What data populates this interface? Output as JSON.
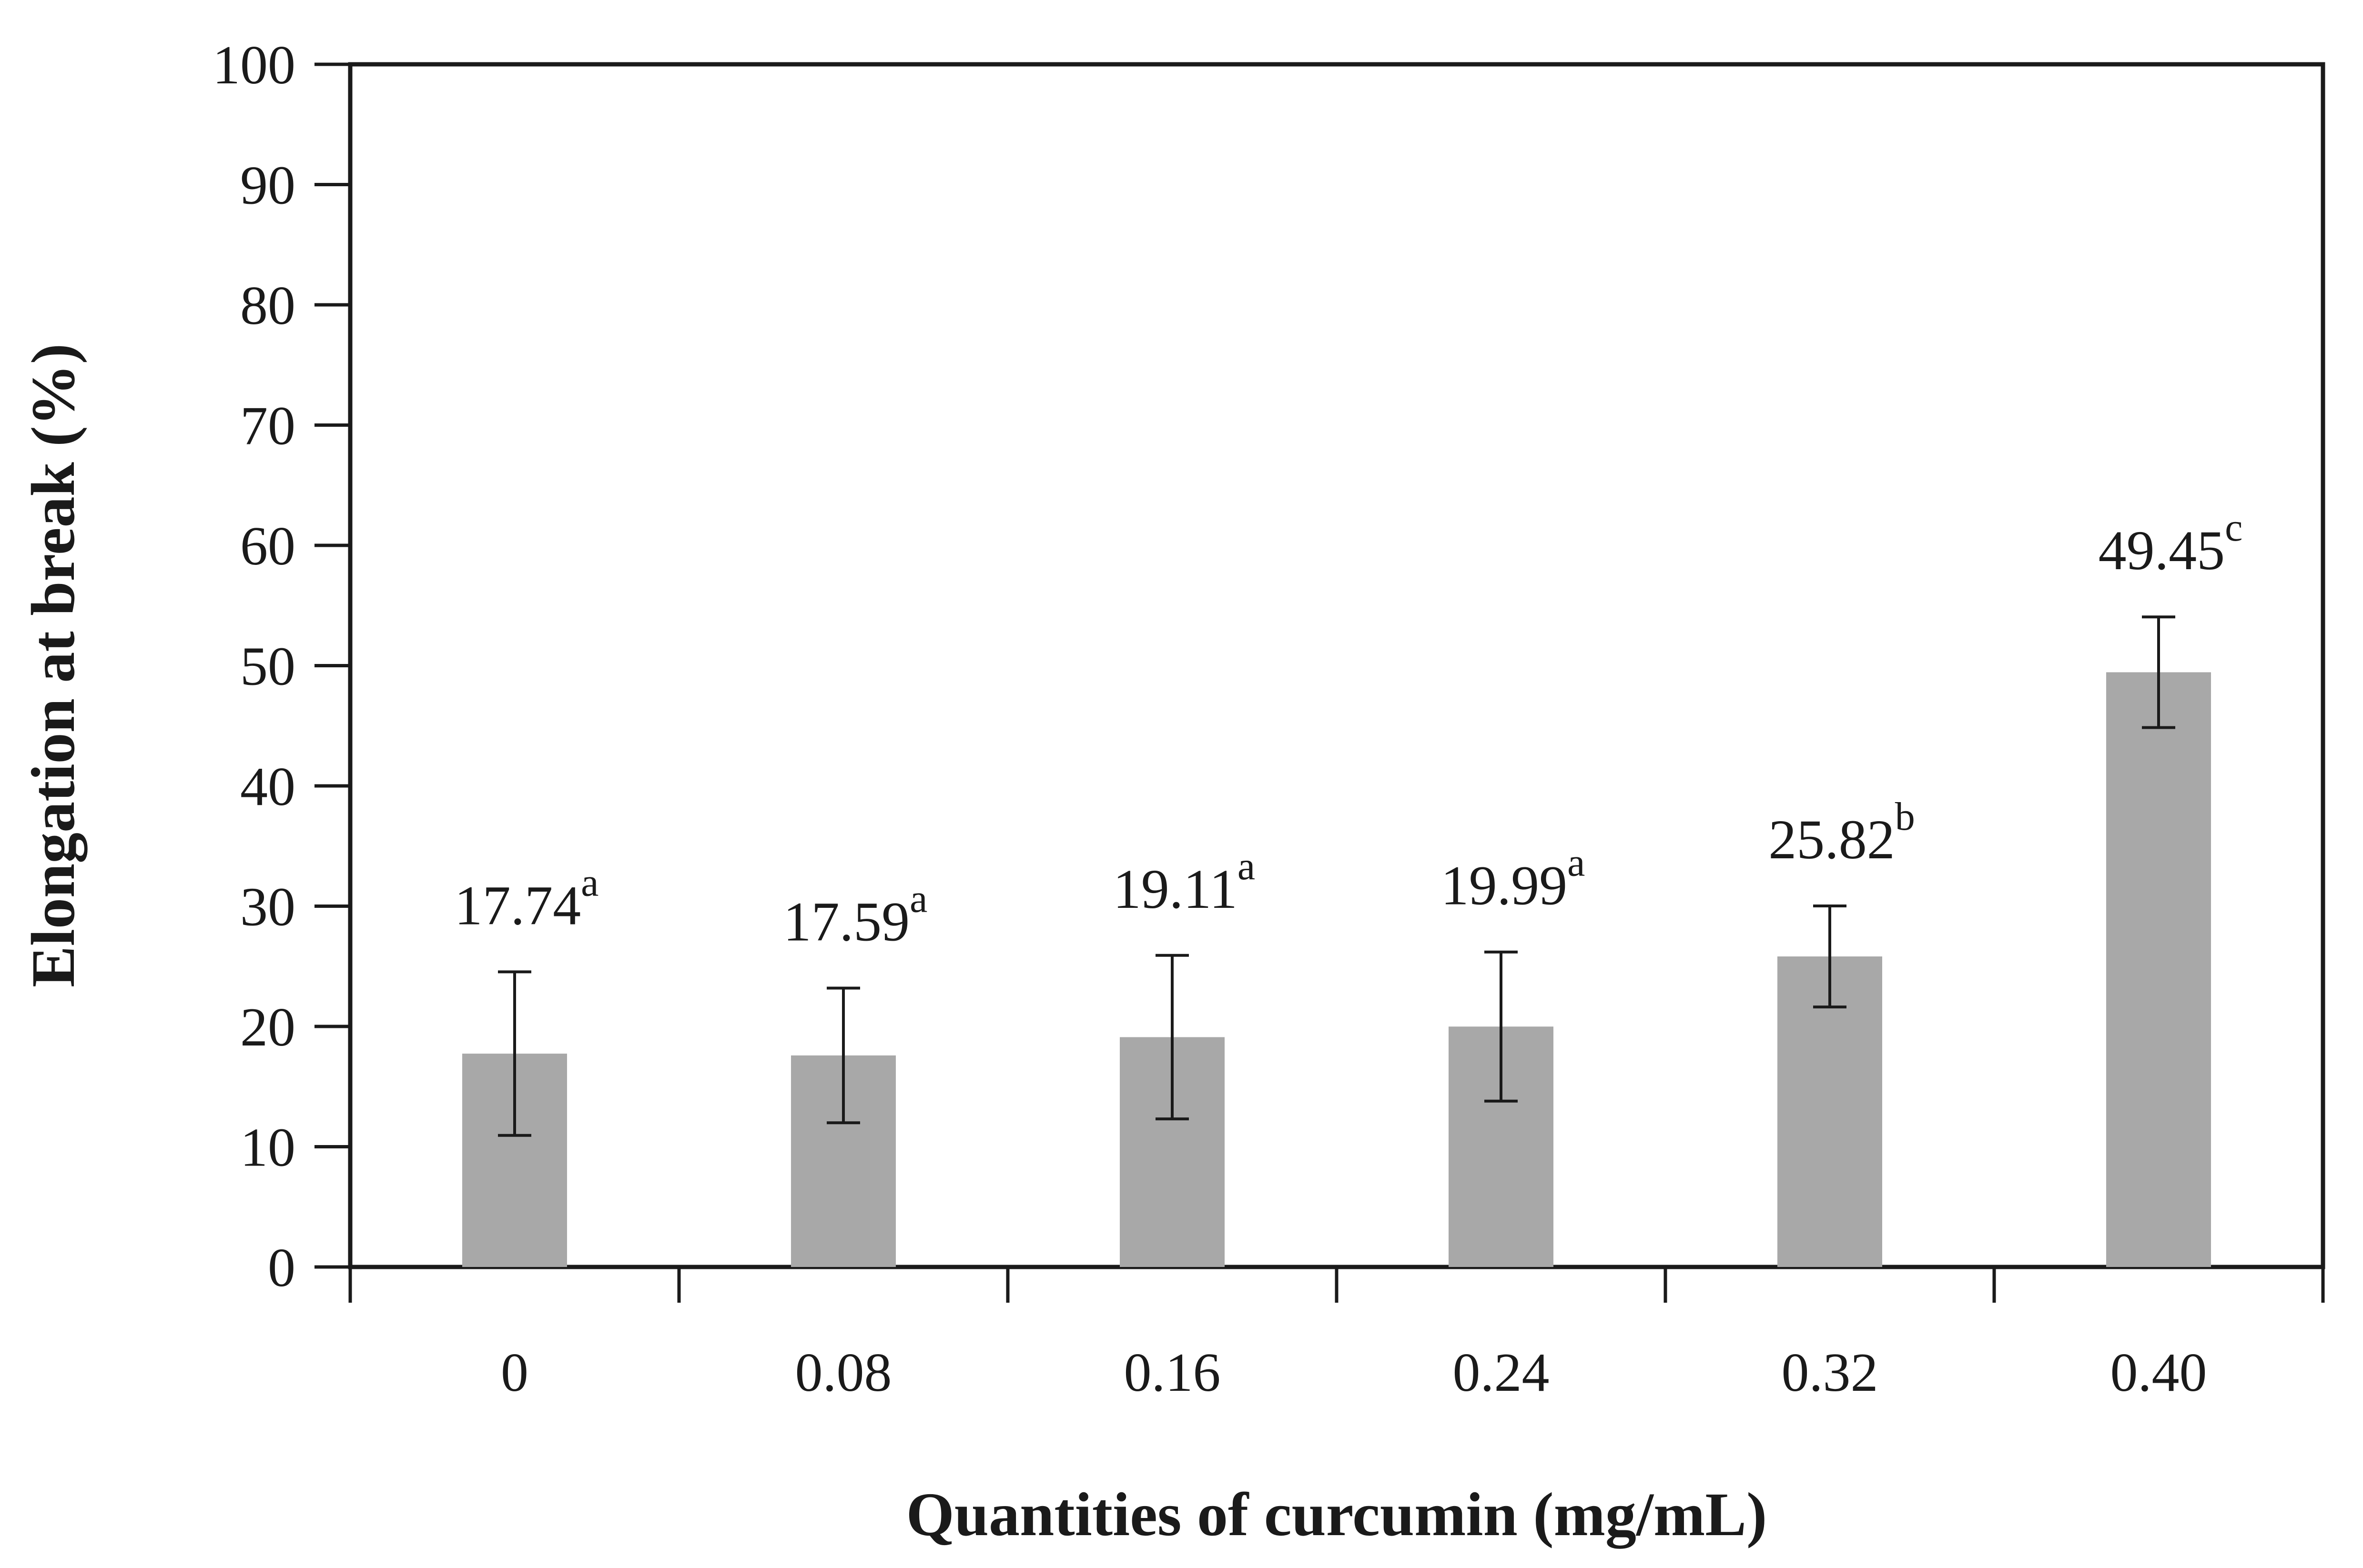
{
  "chart_data": {
    "type": "bar",
    "title": "",
    "xlabel": "Quantities of curcumin (mg/mL)",
    "ylabel": "Elongation at break (%)",
    "ylim": [
      0,
      100
    ],
    "yticks": [
      "0",
      "10",
      "20",
      "30",
      "40",
      "50",
      "60",
      "70",
      "80",
      "90",
      "100"
    ],
    "categories": [
      "0",
      "0.08",
      "0.16",
      "0.24",
      "0.32",
      "0.40"
    ],
    "values": [
      17.74,
      17.59,
      19.11,
      19.99,
      25.82,
      49.45
    ],
    "error": [
      6.8,
      5.6,
      6.8,
      6.2,
      4.2,
      4.6
    ],
    "labels": [
      "17.74",
      "17.59",
      "19.11",
      "19.99",
      "25.82",
      "49.45"
    ],
    "significance": [
      "a",
      "a",
      "a",
      "a",
      "b",
      "c"
    ],
    "grid": false,
    "legend": "none",
    "colors": {
      "bar": "#a8a8a8",
      "axis": "#1a1a1a",
      "text": "#1a1a1a"
    }
  }
}
